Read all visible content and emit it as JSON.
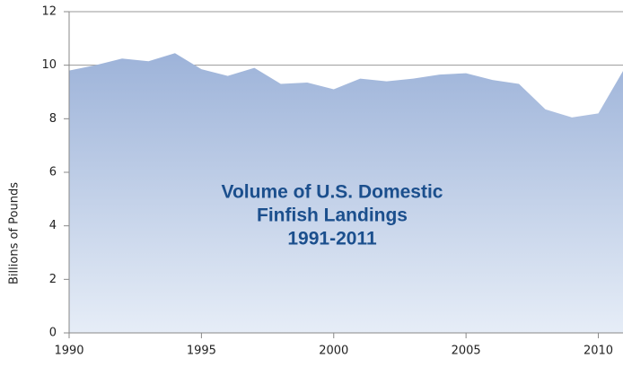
{
  "chart_data": {
    "type": "area",
    "title": [
      "Volume of U.S. Domestic",
      "Finfish Landings",
      "1991-2011"
    ],
    "y_label": "Billions of Pounds",
    "x": [
      1990,
      1991,
      1992,
      1993,
      1994,
      1995,
      1996,
      1997,
      1998,
      1999,
      2000,
      2001,
      2002,
      2003,
      2004,
      2005,
      2006,
      2007,
      2008,
      2009,
      2010,
      2011
    ],
    "values": [
      9.8,
      10.0,
      10.25,
      10.15,
      10.45,
      9.85,
      9.6,
      9.9,
      9.3,
      9.35,
      9.1,
      9.5,
      9.4,
      9.5,
      9.65,
      9.7,
      9.45,
      9.3,
      8.35,
      8.05,
      8.2,
      9.9
    ],
    "color": "#9db3d9",
    "xlim": [
      1990,
      2011
    ],
    "xticks": [
      1990,
      1995,
      2000,
      2005,
      2010
    ],
    "ylim": [
      0,
      12
    ],
    "yticks": [
      0,
      2,
      4,
      6,
      8,
      10,
      12
    ],
    "grid": true
  }
}
